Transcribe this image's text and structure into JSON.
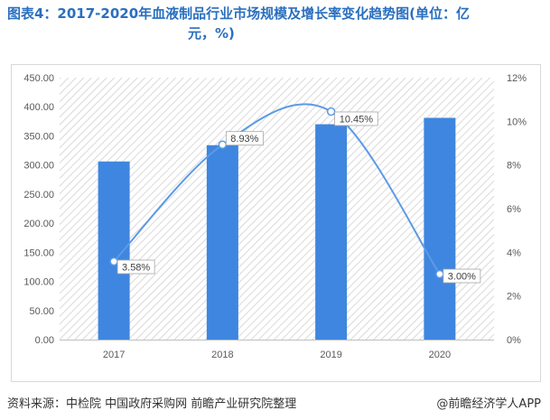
{
  "title": {
    "line1": "图表4：2017-2020年血液制品行业市场规模及增长率变化趋势图(单位：亿",
    "line2": "元，%)"
  },
  "source": "资料来源：中检院 中国政府采购网 前瞻产业研究院整理",
  "credit": "@前瞻经济学人APP",
  "colors": {
    "bar": "#3f86e0",
    "line": "#5b9ae6",
    "title": "#2a6fbf"
  },
  "chart_data": {
    "type": "bar+line",
    "categories": [
      "2017",
      "2018",
      "2019",
      "2020"
    ],
    "series": [
      {
        "type": "bar",
        "axis": "left",
        "values": [
          306,
          334,
          370,
          381
        ]
      },
      {
        "type": "line",
        "axis": "right",
        "values": [
          3.58,
          8.93,
          10.45,
          3.0
        ],
        "labels": [
          "3.58%",
          "8.93%",
          "10.45%",
          "3.00%"
        ],
        "smooth": true
      }
    ],
    "y_left": {
      "min": 0,
      "max": 450,
      "step": 50,
      "ticks": [
        "0.00",
        "50.00",
        "100.00",
        "150.00",
        "200.00",
        "250.00",
        "300.00",
        "350.00",
        "400.00",
        "450.00"
      ]
    },
    "y_right": {
      "min": 0,
      "max": 12,
      "step": 2,
      "ticks": [
        "0%",
        "2%",
        "4%",
        "6%",
        "8%",
        "10%",
        "12%"
      ]
    },
    "background": "diagonal-hatch",
    "grid": false,
    "legend": "none"
  }
}
